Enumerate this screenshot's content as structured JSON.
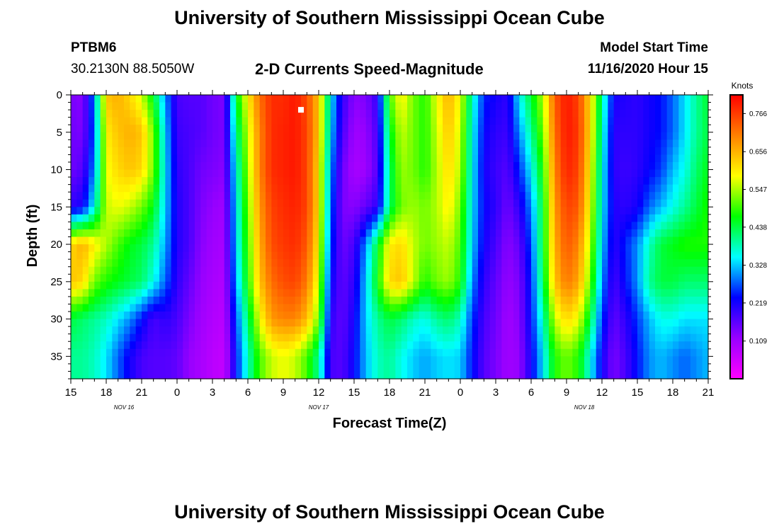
{
  "page": {
    "title_top": "University of Southern Mississippi Ocean Cube",
    "title_bottom": "University of Southern Mississippi Ocean Cube",
    "station_id": "PTBM6",
    "station_coords": "30.2130N 88.5050W",
    "chart_title": "2-D Currents Speed-Magnitude",
    "model_start_label": "Model Start Time",
    "model_start_value": "11/16/2020 Hour 15"
  },
  "chart_data": {
    "type": "heatmap",
    "title": "2-D Currents Speed-Magnitude",
    "xlabel": "Forecast Time(Z)",
    "ylabel": "Depth (ft)",
    "x_tick_labels": [
      "15",
      "18",
      "21",
      "0",
      "3",
      "6",
      "9",
      "12",
      "15",
      "18",
      "21",
      "0",
      "3",
      "6",
      "9",
      "12",
      "15",
      "18",
      "21"
    ],
    "x_range_hours": [
      0,
      54
    ],
    "date_labels": [
      {
        "label": "NOV 16",
        "hour": 4.5
      },
      {
        "label": "NOV 17",
        "hour": 21
      },
      {
        "label": "NOV 18",
        "hour": 43.5
      }
    ],
    "y_tick_labels": [
      "0",
      "5",
      "10",
      "15",
      "20",
      "25",
      "30",
      "35"
    ],
    "ylim": [
      0,
      38
    ],
    "y_inverted": true,
    "colorbar": {
      "title": "Knots",
      "ticks": [
        "0.766",
        "0.656",
        "0.547",
        "0.438",
        "0.328",
        "0.219",
        "0.109"
      ],
      "tick_values": [
        0.766,
        0.656,
        0.547,
        0.438,
        0.328,
        0.219,
        0.109
      ],
      "range": [
        0.0,
        0.82
      ],
      "colors": [
        "#ff00ff",
        "#9900ff",
        "#0000ff",
        "#00ffff",
        "#00ff00",
        "#ffff00",
        "#ff8000",
        "#ff0000"
      ]
    },
    "speed_grid": {
      "hours": [
        0,
        1,
        2,
        3,
        4,
        5,
        6,
        7,
        8,
        9,
        10,
        11,
        12,
        13,
        14,
        15,
        16,
        17,
        18,
        19,
        20,
        21,
        22,
        23,
        24,
        25,
        26,
        27,
        28,
        29,
        30,
        31,
        32,
        33,
        34,
        35,
        36,
        37,
        38,
        39,
        40,
        41,
        42,
        43,
        44,
        45,
        46,
        47,
        48,
        49,
        50,
        51,
        52,
        53,
        54
      ],
      "depths_ft": [
        0,
        5,
        10,
        15,
        20,
        25,
        30,
        35,
        38
      ],
      "values_knots": [
        [
          0.14,
          0.13,
          0.3,
          0.64,
          0.66,
          0.62,
          0.56,
          0.45,
          0.3,
          0.18,
          0.17,
          0.17,
          0.15,
          0.14,
          0.45,
          0.6,
          0.72,
          0.78,
          0.78,
          0.8,
          0.75,
          0.64,
          0.35,
          0.2,
          0.13,
          0.14,
          0.2,
          0.5,
          0.6,
          0.52,
          0.48,
          0.58,
          0.66,
          0.58,
          0.38,
          0.25,
          0.22,
          0.2,
          0.35,
          0.45,
          0.55,
          0.74,
          0.8,
          0.76,
          0.62,
          0.4,
          0.22,
          0.21,
          0.2,
          0.22,
          0.24,
          0.28,
          0.34,
          0.4,
          0.45
        ],
        [
          0.15,
          0.14,
          0.28,
          0.6,
          0.64,
          0.66,
          0.64,
          0.52,
          0.33,
          0.19,
          0.18,
          0.17,
          0.15,
          0.14,
          0.4,
          0.56,
          0.7,
          0.78,
          0.79,
          0.8,
          0.76,
          0.64,
          0.33,
          0.18,
          0.11,
          0.12,
          0.18,
          0.45,
          0.56,
          0.52,
          0.48,
          0.56,
          0.64,
          0.56,
          0.36,
          0.23,
          0.2,
          0.19,
          0.3,
          0.4,
          0.52,
          0.72,
          0.8,
          0.77,
          0.62,
          0.38,
          0.2,
          0.2,
          0.2,
          0.22,
          0.24,
          0.28,
          0.34,
          0.4,
          0.44
        ],
        [
          0.15,
          0.17,
          0.3,
          0.58,
          0.62,
          0.64,
          0.62,
          0.52,
          0.34,
          0.2,
          0.18,
          0.15,
          0.14,
          0.13,
          0.36,
          0.54,
          0.7,
          0.78,
          0.79,
          0.8,
          0.76,
          0.62,
          0.3,
          0.15,
          0.1,
          0.11,
          0.17,
          0.42,
          0.54,
          0.52,
          0.48,
          0.55,
          0.62,
          0.55,
          0.35,
          0.22,
          0.19,
          0.17,
          0.25,
          0.35,
          0.48,
          0.7,
          0.79,
          0.76,
          0.6,
          0.36,
          0.2,
          0.19,
          0.2,
          0.23,
          0.26,
          0.32,
          0.36,
          0.42,
          0.46
        ],
        [
          0.2,
          0.22,
          0.36,
          0.56,
          0.58,
          0.56,
          0.52,
          0.46,
          0.33,
          0.21,
          0.18,
          0.14,
          0.12,
          0.11,
          0.34,
          0.52,
          0.68,
          0.76,
          0.78,
          0.79,
          0.76,
          0.62,
          0.28,
          0.14,
          0.13,
          0.16,
          0.2,
          0.42,
          0.52,
          0.54,
          0.52,
          0.55,
          0.6,
          0.52,
          0.34,
          0.23,
          0.2,
          0.15,
          0.2,
          0.3,
          0.45,
          0.68,
          0.76,
          0.74,
          0.58,
          0.35,
          0.21,
          0.2,
          0.22,
          0.28,
          0.32,
          0.36,
          0.4,
          0.44,
          0.48
        ],
        [
          0.62,
          0.66,
          0.6,
          0.55,
          0.5,
          0.46,
          0.44,
          0.4,
          0.31,
          0.21,
          0.18,
          0.13,
          0.11,
          0.1,
          0.33,
          0.5,
          0.66,
          0.75,
          0.77,
          0.78,
          0.74,
          0.6,
          0.26,
          0.15,
          0.18,
          0.3,
          0.45,
          0.6,
          0.62,
          0.56,
          0.52,
          0.54,
          0.56,
          0.5,
          0.33,
          0.22,
          0.18,
          0.13,
          0.16,
          0.27,
          0.45,
          0.66,
          0.74,
          0.7,
          0.55,
          0.33,
          0.2,
          0.25,
          0.3,
          0.38,
          0.44,
          0.46,
          0.48,
          0.48,
          0.48
        ],
        [
          0.64,
          0.62,
          0.52,
          0.48,
          0.46,
          0.44,
          0.42,
          0.36,
          0.28,
          0.2,
          0.16,
          0.12,
          0.1,
          0.09,
          0.31,
          0.48,
          0.64,
          0.72,
          0.75,
          0.76,
          0.71,
          0.57,
          0.23,
          0.16,
          0.2,
          0.33,
          0.47,
          0.62,
          0.64,
          0.56,
          0.48,
          0.52,
          0.54,
          0.48,
          0.3,
          0.2,
          0.16,
          0.12,
          0.14,
          0.25,
          0.43,
          0.64,
          0.71,
          0.67,
          0.52,
          0.3,
          0.18,
          0.24,
          0.3,
          0.4,
          0.44,
          0.44,
          0.42,
          0.42,
          0.42
        ],
        [
          0.44,
          0.42,
          0.4,
          0.38,
          0.34,
          0.3,
          0.24,
          0.18,
          0.2,
          0.18,
          0.14,
          0.11,
          0.09,
          0.08,
          0.27,
          0.42,
          0.58,
          0.68,
          0.7,
          0.7,
          0.65,
          0.52,
          0.2,
          0.16,
          0.22,
          0.33,
          0.4,
          0.44,
          0.42,
          0.38,
          0.36,
          0.4,
          0.42,
          0.38,
          0.26,
          0.18,
          0.15,
          0.11,
          0.13,
          0.24,
          0.38,
          0.56,
          0.62,
          0.58,
          0.44,
          0.26,
          0.16,
          0.2,
          0.26,
          0.32,
          0.36,
          0.36,
          0.34,
          0.34,
          0.34
        ],
        [
          0.4,
          0.4,
          0.38,
          0.34,
          0.28,
          0.22,
          0.18,
          0.17,
          0.17,
          0.16,
          0.12,
          0.1,
          0.08,
          0.07,
          0.24,
          0.38,
          0.5,
          0.56,
          0.58,
          0.56,
          0.5,
          0.4,
          0.18,
          0.17,
          0.23,
          0.32,
          0.38,
          0.4,
          0.36,
          0.33,
          0.31,
          0.33,
          0.34,
          0.33,
          0.24,
          0.17,
          0.14,
          0.11,
          0.12,
          0.22,
          0.34,
          0.48,
          0.52,
          0.48,
          0.36,
          0.22,
          0.14,
          0.18,
          0.24,
          0.3,
          0.32,
          0.3,
          0.28,
          0.3,
          0.32
        ],
        [
          0.4,
          0.4,
          0.38,
          0.34,
          0.28,
          0.22,
          0.18,
          0.17,
          0.17,
          0.16,
          0.12,
          0.1,
          0.08,
          0.07,
          0.24,
          0.38,
          0.5,
          0.56,
          0.58,
          0.56,
          0.5,
          0.4,
          0.18,
          0.17,
          0.23,
          0.32,
          0.38,
          0.4,
          0.36,
          0.33,
          0.31,
          0.33,
          0.34,
          0.33,
          0.24,
          0.17,
          0.14,
          0.11,
          0.12,
          0.22,
          0.34,
          0.48,
          0.52,
          0.48,
          0.36,
          0.22,
          0.14,
          0.18,
          0.24,
          0.3,
          0.32,
          0.3,
          0.28,
          0.3,
          0.32
        ]
      ]
    }
  }
}
